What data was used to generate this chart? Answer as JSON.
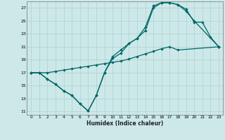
{
  "xlabel": "Humidex (Indice chaleur)",
  "background_color": "#cce8e8",
  "grid_color": "#b0d0d0",
  "line_color": "#006666",
  "xlim": [
    -0.5,
    23.5
  ],
  "ylim": [
    10.5,
    28.0
  ],
  "xticks": [
    0,
    1,
    2,
    3,
    4,
    5,
    6,
    7,
    8,
    9,
    10,
    11,
    12,
    13,
    14,
    15,
    16,
    17,
    18,
    19,
    20,
    21,
    22,
    23
  ],
  "yticks": [
    11,
    13,
    15,
    17,
    19,
    21,
    23,
    25,
    27
  ],
  "line1_x": [
    0,
    1,
    2,
    3,
    4,
    5,
    6,
    7,
    8,
    9,
    10,
    11,
    12,
    13,
    14,
    15,
    16,
    17,
    18,
    19,
    20,
    23
  ],
  "line1_y": [
    17,
    17,
    16,
    15.2,
    14.2,
    13.5,
    12.2,
    11.1,
    13.5,
    17,
    19.5,
    20.5,
    21.5,
    22.3,
    24.0,
    27.3,
    27.8,
    27.8,
    27.5,
    26.5,
    25.0,
    21.0
  ],
  "line2_x": [
    0,
    1,
    2,
    3,
    4,
    5,
    6,
    7,
    8,
    9,
    10,
    11,
    12,
    13,
    14,
    15,
    16,
    17,
    18,
    19,
    20,
    21,
    22,
    23
  ],
  "line2_y": [
    17,
    17,
    16,
    15.2,
    14.2,
    13.5,
    12.2,
    11.1,
    13.5,
    17.0,
    19.2,
    20.0,
    21.5,
    22.3,
    23.5,
    27.0,
    27.8,
    27.8,
    27.5,
    26.8,
    24.8,
    24.8,
    22.5,
    21.0
  ],
  "line3_x": [
    0,
    1,
    2,
    3,
    4,
    5,
    6,
    7,
    8,
    9,
    10,
    11,
    12,
    13,
    14,
    15,
    16,
    17,
    18,
    23
  ],
  "line3_y": [
    17,
    17,
    17,
    17.2,
    17.4,
    17.6,
    17.8,
    18.0,
    18.2,
    18.4,
    18.6,
    18.8,
    19.1,
    19.5,
    19.9,
    20.3,
    20.7,
    21.0,
    20.5,
    21.0
  ]
}
